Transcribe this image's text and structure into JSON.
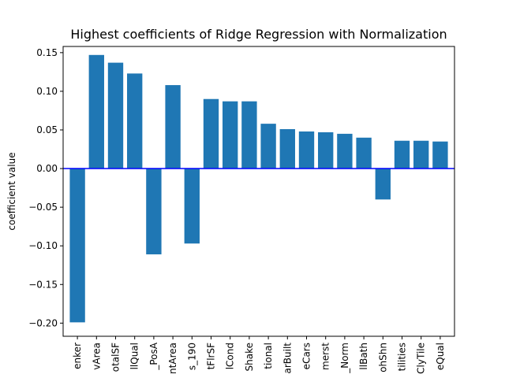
{
  "chart_data": {
    "type": "bar",
    "title": "Highest coefficients of Ridge Regression with Normalization",
    "xlabel": "",
    "ylabel": "coefficient value",
    "ylim": [
      -0.217,
      0.158
    ],
    "yticks": [
      0.15,
      0.1,
      0.05,
      0.0,
      -0.05,
      -0.1,
      -0.15,
      -0.2
    ],
    "ytick_labels": [
      "0.15",
      "0.10",
      "0.05",
      "0.00",
      "−0.05",
      "−0.10",
      "−0.15",
      "−0.20"
    ],
    "categories": [
      "enker",
      "vArea",
      "otalSF",
      "llQual",
      "_PosA",
      "ntArea",
      "s_190",
      "tFlrSF",
      "lCond",
      "Shake",
      "tional",
      "arBuilt",
      "eCars",
      "merst",
      "_Norm",
      "llBath",
      "ohShn",
      "tilities",
      "ClyTile",
      "eQual"
    ],
    "values": [
      -0.199,
      0.147,
      0.137,
      0.123,
      -0.111,
      0.108,
      -0.097,
      0.09,
      0.087,
      0.087,
      0.058,
      0.051,
      0.048,
      0.047,
      0.045,
      0.04,
      -0.04,
      0.036,
      0.036,
      0.035
    ],
    "bar_color": "#1f77b4",
    "zero_line_color": "#0000ff",
    "grid": false,
    "legend": "none"
  }
}
